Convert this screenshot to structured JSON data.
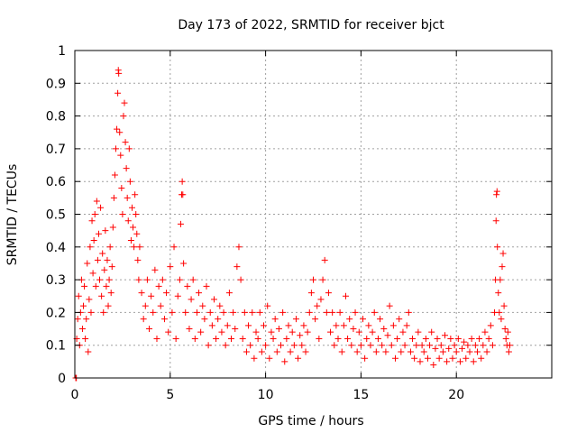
{
  "chart_data": {
    "type": "scatter",
    "title": "Day 173 of 2022, SRMTID for receiver bjct",
    "xlabel": "GPS time / hours",
    "ylabel": "SRMTID / TECUs",
    "xlim": [
      0,
      25
    ],
    "ylim": [
      0,
      1
    ],
    "xticks": [
      0,
      5,
      10,
      15,
      20
    ],
    "yticks": [
      0,
      0.1,
      0.2,
      0.3,
      0.4,
      0.5,
      0.6,
      0.7,
      0.8,
      0.9,
      1
    ],
    "xtick_labels": [
      "0",
      "5",
      "10",
      "15",
      "20"
    ],
    "ytick_labels": [
      "0",
      "0.1",
      "0.2",
      "0.3",
      "0.4",
      "0.5",
      "0.6",
      "0.7",
      "0.8",
      "0.9",
      "1"
    ],
    "grid": true,
    "marker": "+",
    "color": "#ff0000",
    "series": [
      {
        "name": "SRMTID",
        "points": [
          [
            0.05,
            0.0
          ],
          [
            0.08,
            0.0
          ],
          [
            0.1,
            0.12
          ],
          [
            0.15,
            0.18
          ],
          [
            0.2,
            0.25
          ],
          [
            0.25,
            0.1
          ],
          [
            0.3,
            0.2
          ],
          [
            0.35,
            0.3
          ],
          [
            0.4,
            0.15
          ],
          [
            0.45,
            0.22
          ],
          [
            0.5,
            0.28
          ],
          [
            0.55,
            0.12
          ],
          [
            0.6,
            0.18
          ],
          [
            0.65,
            0.35
          ],
          [
            0.7,
            0.08
          ],
          [
            0.75,
            0.24
          ],
          [
            0.8,
            0.4
          ],
          [
            0.85,
            0.2
          ],
          [
            0.9,
            0.48
          ],
          [
            0.95,
            0.32
          ],
          [
            1.0,
            0.42
          ],
          [
            1.05,
            0.5
          ],
          [
            1.1,
            0.28
          ],
          [
            1.15,
            0.54
          ],
          [
            1.2,
            0.36
          ],
          [
            1.25,
            0.44
          ],
          [
            1.3,
            0.3
          ],
          [
            1.35,
            0.52
          ],
          [
            1.4,
            0.25
          ],
          [
            1.45,
            0.38
          ],
          [
            1.5,
            0.2
          ],
          [
            1.55,
            0.33
          ],
          [
            1.6,
            0.45
          ],
          [
            1.65,
            0.28
          ],
          [
            1.7,
            0.36
          ],
          [
            1.75,
            0.22
          ],
          [
            1.8,
            0.3
          ],
          [
            1.85,
            0.4
          ],
          [
            1.9,
            0.26
          ],
          [
            1.95,
            0.34
          ],
          [
            2.0,
            0.46
          ],
          [
            2.05,
            0.55
          ],
          [
            2.1,
            0.62
          ],
          [
            2.15,
            0.7
          ],
          [
            2.2,
            0.76
          ],
          [
            2.25,
            0.87
          ],
          [
            2.28,
            0.94
          ],
          [
            2.3,
            0.93
          ],
          [
            2.35,
            0.75
          ],
          [
            2.4,
            0.68
          ],
          [
            2.45,
            0.58
          ],
          [
            2.5,
            0.5
          ],
          [
            2.55,
            0.8
          ],
          [
            2.6,
            0.84
          ],
          [
            2.65,
            0.72
          ],
          [
            2.7,
            0.64
          ],
          [
            2.75,
            0.55
          ],
          [
            2.8,
            0.48
          ],
          [
            2.85,
            0.7
          ],
          [
            2.9,
            0.6
          ],
          [
            2.95,
            0.42
          ],
          [
            3.0,
            0.52
          ],
          [
            3.05,
            0.46
          ],
          [
            3.1,
            0.4
          ],
          [
            3.15,
            0.56
          ],
          [
            3.2,
            0.5
          ],
          [
            3.25,
            0.44
          ],
          [
            3.3,
            0.36
          ],
          [
            3.35,
            0.3
          ],
          [
            3.4,
            0.4
          ],
          [
            3.5,
            0.26
          ],
          [
            3.6,
            0.18
          ],
          [
            3.7,
            0.22
          ],
          [
            3.8,
            0.3
          ],
          [
            3.9,
            0.15
          ],
          [
            4.0,
            0.25
          ],
          [
            4.1,
            0.2
          ],
          [
            4.2,
            0.33
          ],
          [
            4.3,
            0.12
          ],
          [
            4.4,
            0.28
          ],
          [
            4.5,
            0.22
          ],
          [
            4.6,
            0.3
          ],
          [
            4.7,
            0.18
          ],
          [
            4.8,
            0.26
          ],
          [
            4.9,
            0.14
          ],
          [
            5.0,
            0.34
          ],
          [
            5.1,
            0.2
          ],
          [
            5.2,
            0.4
          ],
          [
            5.3,
            0.12
          ],
          [
            5.4,
            0.25
          ],
          [
            5.5,
            0.3
          ],
          [
            5.55,
            0.47
          ],
          [
            5.6,
            0.56
          ],
          [
            5.63,
            0.6
          ],
          [
            5.66,
            0.56
          ],
          [
            5.7,
            0.35
          ],
          [
            5.8,
            0.2
          ],
          [
            5.9,
            0.28
          ],
          [
            6.0,
            0.15
          ],
          [
            6.1,
            0.24
          ],
          [
            6.2,
            0.3
          ],
          [
            6.3,
            0.12
          ],
          [
            6.4,
            0.2
          ],
          [
            6.5,
            0.26
          ],
          [
            6.6,
            0.14
          ],
          [
            6.7,
            0.22
          ],
          [
            6.8,
            0.18
          ],
          [
            6.9,
            0.28
          ],
          [
            7.0,
            0.1
          ],
          [
            7.1,
            0.2
          ],
          [
            7.2,
            0.16
          ],
          [
            7.3,
            0.24
          ],
          [
            7.4,
            0.12
          ],
          [
            7.5,
            0.18
          ],
          [
            7.6,
            0.22
          ],
          [
            7.7,
            0.14
          ],
          [
            7.8,
            0.2
          ],
          [
            7.9,
            0.1
          ],
          [
            8.0,
            0.16
          ],
          [
            8.1,
            0.26
          ],
          [
            8.2,
            0.12
          ],
          [
            8.3,
            0.2
          ],
          [
            8.4,
            0.15
          ],
          [
            8.5,
            0.34
          ],
          [
            8.6,
            0.4
          ],
          [
            8.7,
            0.3
          ],
          [
            8.8,
            0.12
          ],
          [
            8.9,
            0.2
          ],
          [
            9.0,
            0.08
          ],
          [
            9.1,
            0.16
          ],
          [
            9.2,
            0.1
          ],
          [
            9.3,
            0.2
          ],
          [
            9.4,
            0.06
          ],
          [
            9.5,
            0.14
          ],
          [
            9.6,
            0.12
          ],
          [
            9.7,
            0.2
          ],
          [
            9.8,
            0.08
          ],
          [
            9.9,
            0.16
          ],
          [
            10.0,
            0.1
          ],
          [
            10.1,
            0.22
          ],
          [
            10.2,
            0.06
          ],
          [
            10.3,
            0.14
          ],
          [
            10.4,
            0.12
          ],
          [
            10.5,
            0.18
          ],
          [
            10.6,
            0.08
          ],
          [
            10.7,
            0.15
          ],
          [
            10.8,
            0.1
          ],
          [
            10.9,
            0.2
          ],
          [
            11.0,
            0.05
          ],
          [
            11.1,
            0.12
          ],
          [
            11.2,
            0.16
          ],
          [
            11.3,
            0.08
          ],
          [
            11.4,
            0.14
          ],
          [
            11.5,
            0.1
          ],
          [
            11.6,
            0.18
          ],
          [
            11.7,
            0.06
          ],
          [
            11.8,
            0.13
          ],
          [
            11.9,
            0.1
          ],
          [
            12.0,
            0.16
          ],
          [
            12.1,
            0.08
          ],
          [
            12.2,
            0.14
          ],
          [
            12.3,
            0.2
          ],
          [
            12.4,
            0.26
          ],
          [
            12.5,
            0.3
          ],
          [
            12.6,
            0.18
          ],
          [
            12.7,
            0.22
          ],
          [
            12.8,
            0.12
          ],
          [
            12.9,
            0.24
          ],
          [
            13.0,
            0.3
          ],
          [
            13.1,
            0.36
          ],
          [
            13.2,
            0.2
          ],
          [
            13.3,
            0.26
          ],
          [
            13.4,
            0.14
          ],
          [
            13.5,
            0.2
          ],
          [
            13.6,
            0.1
          ],
          [
            13.7,
            0.16
          ],
          [
            13.8,
            0.12
          ],
          [
            13.9,
            0.2
          ],
          [
            14.0,
            0.08
          ],
          [
            14.1,
            0.16
          ],
          [
            14.2,
            0.25
          ],
          [
            14.3,
            0.12
          ],
          [
            14.4,
            0.18
          ],
          [
            14.5,
            0.1
          ],
          [
            14.6,
            0.15
          ],
          [
            14.7,
            0.2
          ],
          [
            14.8,
            0.08
          ],
          [
            14.9,
            0.14
          ],
          [
            15.0,
            0.1
          ],
          [
            15.1,
            0.18
          ],
          [
            15.2,
            0.06
          ],
          [
            15.3,
            0.12
          ],
          [
            15.4,
            0.16
          ],
          [
            15.5,
            0.1
          ],
          [
            15.6,
            0.14
          ],
          [
            15.7,
            0.2
          ],
          [
            15.8,
            0.08
          ],
          [
            15.9,
            0.12
          ],
          [
            16.0,
            0.18
          ],
          [
            16.1,
            0.1
          ],
          [
            16.2,
            0.15
          ],
          [
            16.3,
            0.08
          ],
          [
            16.4,
            0.13
          ],
          [
            16.5,
            0.22
          ],
          [
            16.6,
            0.1
          ],
          [
            16.7,
            0.16
          ],
          [
            16.8,
            0.06
          ],
          [
            16.9,
            0.12
          ],
          [
            17.0,
            0.18
          ],
          [
            17.1,
            0.08
          ],
          [
            17.2,
            0.14
          ],
          [
            17.3,
            0.1
          ],
          [
            17.4,
            0.16
          ],
          [
            17.5,
            0.2
          ],
          [
            17.6,
            0.08
          ],
          [
            17.7,
            0.12
          ],
          [
            17.8,
            0.06
          ],
          [
            17.9,
            0.1
          ],
          [
            18.0,
            0.14
          ],
          [
            18.1,
            0.05
          ],
          [
            18.2,
            0.1
          ],
          [
            18.3,
            0.08
          ],
          [
            18.4,
            0.12
          ],
          [
            18.5,
            0.06
          ],
          [
            18.6,
            0.1
          ],
          [
            18.7,
            0.14
          ],
          [
            18.8,
            0.04
          ],
          [
            18.9,
            0.09
          ],
          [
            19.0,
            0.12
          ],
          [
            19.1,
            0.06
          ],
          [
            19.2,
            0.1
          ],
          [
            19.3,
            0.08
          ],
          [
            19.4,
            0.13
          ],
          [
            19.5,
            0.05
          ],
          [
            19.6,
            0.09
          ],
          [
            19.7,
            0.12
          ],
          [
            19.8,
            0.06
          ],
          [
            19.9,
            0.1
          ],
          [
            20.0,
            0.08
          ],
          [
            20.1,
            0.12
          ],
          [
            20.2,
            0.05
          ],
          [
            20.3,
            0.09
          ],
          [
            20.4,
            0.11
          ],
          [
            20.5,
            0.06
          ],
          [
            20.6,
            0.1
          ],
          [
            20.7,
            0.08
          ],
          [
            20.8,
            0.12
          ],
          [
            20.9,
            0.05
          ],
          [
            21.0,
            0.1
          ],
          [
            21.1,
            0.08
          ],
          [
            21.2,
            0.12
          ],
          [
            21.3,
            0.06
          ],
          [
            21.4,
            0.1
          ],
          [
            21.5,
            0.14
          ],
          [
            21.6,
            0.08
          ],
          [
            21.7,
            0.12
          ],
          [
            21.8,
            0.16
          ],
          [
            21.9,
            0.1
          ],
          [
            22.0,
            0.2
          ],
          [
            22.05,
            0.3
          ],
          [
            22.08,
            0.48
          ],
          [
            22.1,
            0.56
          ],
          [
            22.13,
            0.57
          ],
          [
            22.15,
            0.4
          ],
          [
            22.2,
            0.26
          ],
          [
            22.25,
            0.2
          ],
          [
            22.3,
            0.3
          ],
          [
            22.35,
            0.18
          ],
          [
            22.4,
            0.34
          ],
          [
            22.45,
            0.38
          ],
          [
            22.5,
            0.22
          ],
          [
            22.55,
            0.15
          ],
          [
            22.6,
            0.12
          ],
          [
            22.65,
            0.1
          ],
          [
            22.7,
            0.14
          ],
          [
            22.75,
            0.08
          ],
          [
            22.8,
            0.1
          ]
        ]
      }
    ]
  }
}
